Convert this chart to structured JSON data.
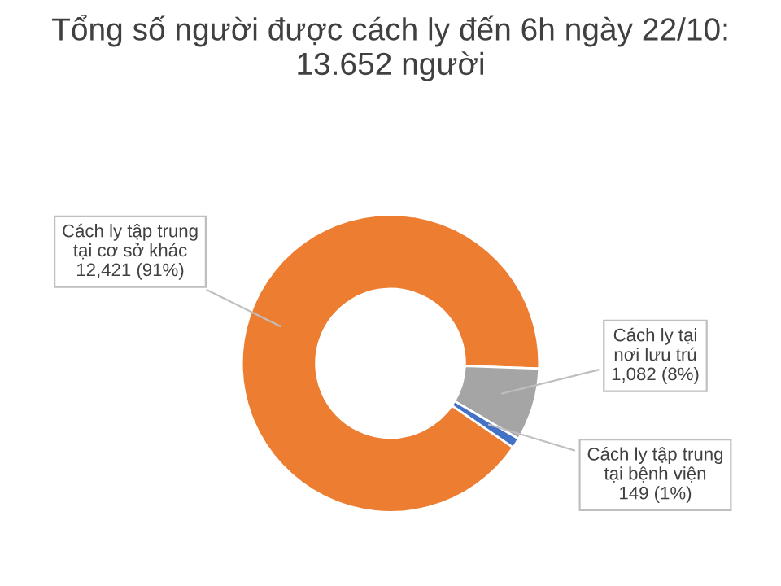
{
  "chart_data": {
    "type": "donut",
    "title": "Tổng số người được cách ly đến 6h ngày 22/10: 13.652 người",
    "categories": [
      "Cách ly tập trung tại cơ sở khác",
      "Cách ly tại nơi lưu trú",
      "Cách ly tập trung tại bệnh viện"
    ],
    "values": [
      12421,
      1082,
      149
    ],
    "value_labels": [
      "12,421 (91%)",
      "1,082 (8%)",
      "149 (1%)"
    ],
    "colors": [
      "#ed7d31",
      "#a5a5a5",
      "#4472c4"
    ]
  }
}
